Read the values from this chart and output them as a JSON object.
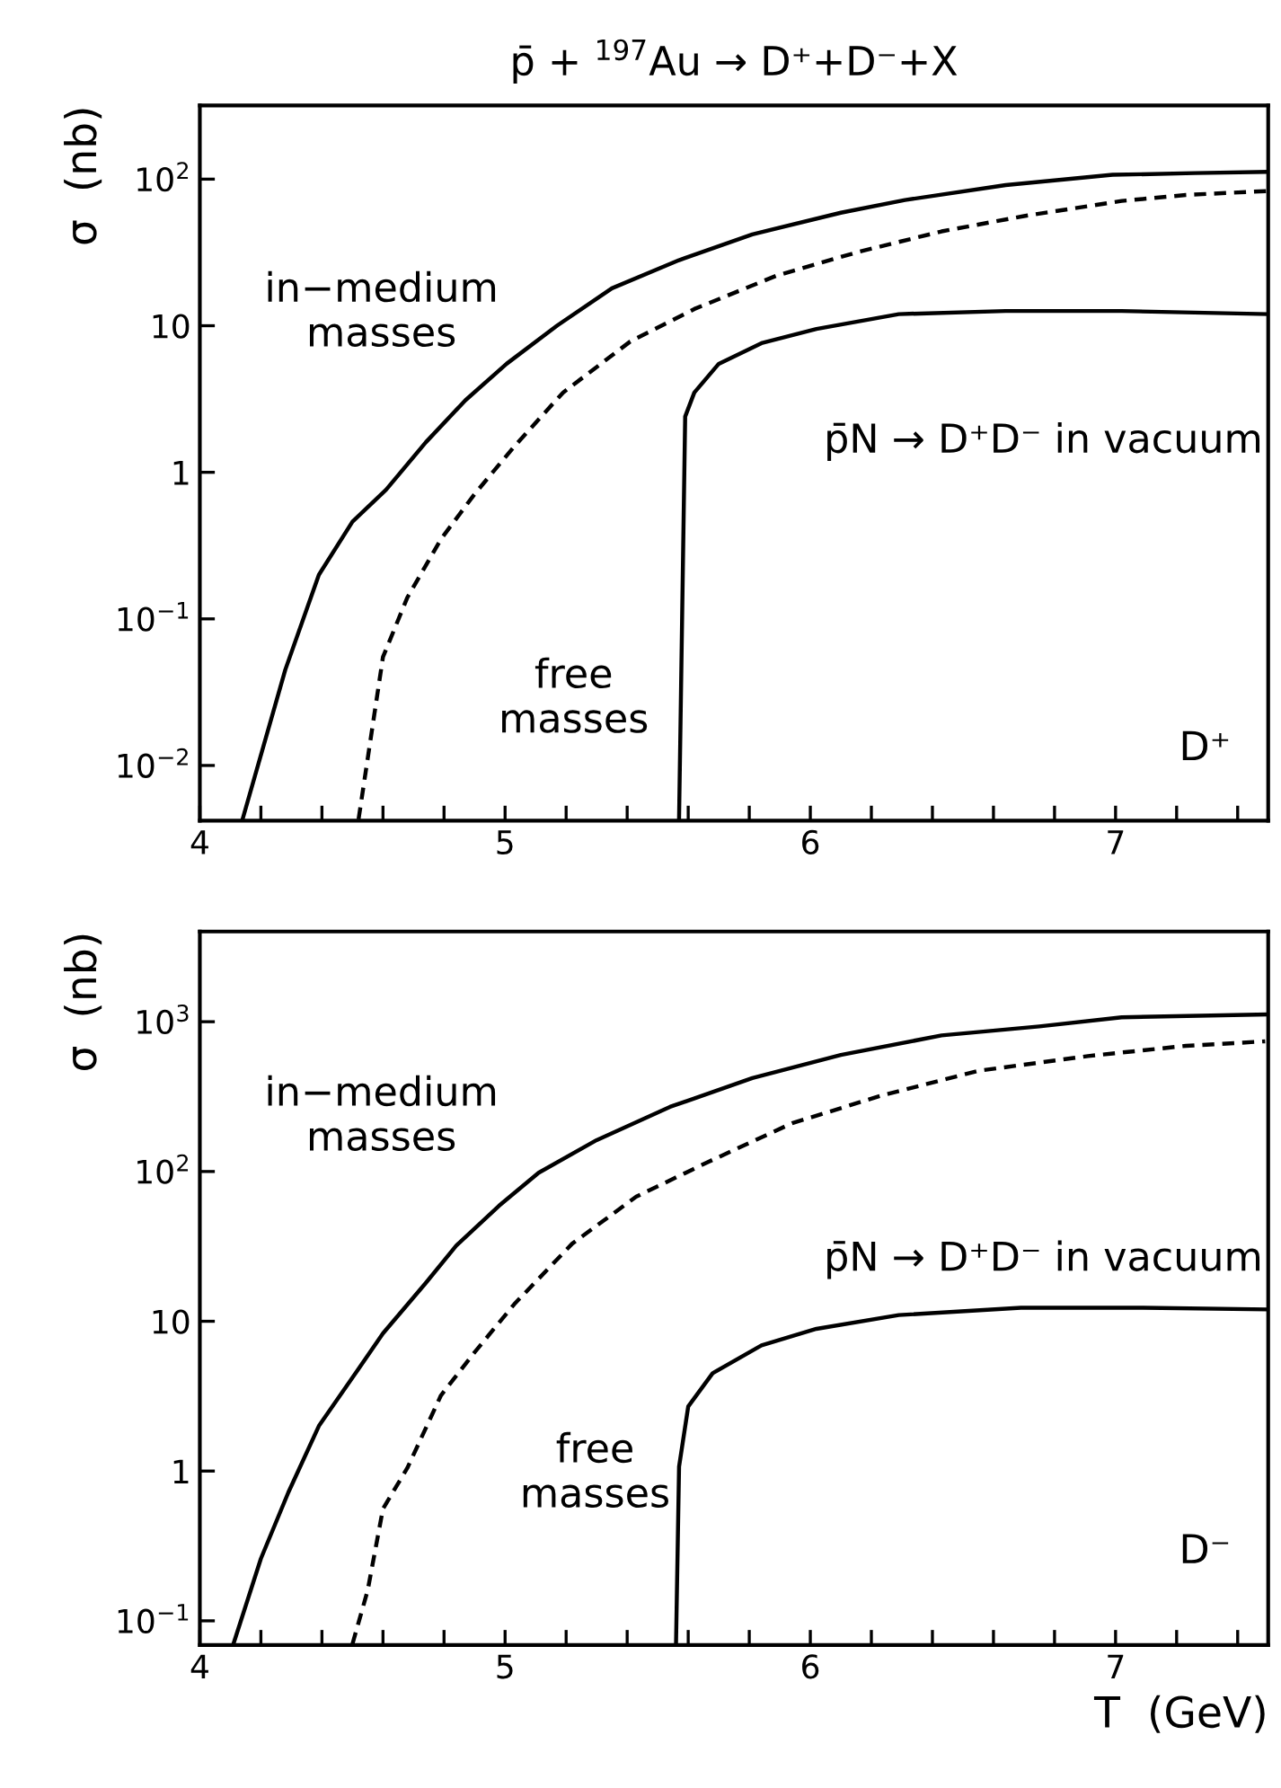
{
  "chart_data": [
    {
      "type": "line",
      "title": "p̄ + $^{197}$Au → D⁺+D⁻+X",
      "ylabel": "σ  (nb)",
      "log": "y",
      "grid": false,
      "xlim": [
        4,
        7.5
      ],
      "ylim": [
        0.0042,
        318
      ],
      "xticks": [
        4,
        {
          "value": 4.2,
          "label": null
        },
        {
          "value": 4.4,
          "label": null
        },
        {
          "value": 4.6,
          "label": null
        },
        {
          "value": 4.8,
          "label": null
        },
        5,
        {
          "value": 5.2,
          "label": null
        },
        {
          "value": 5.4,
          "label": null
        },
        {
          "value": 5.6,
          "label": null
        },
        {
          "value": 5.8,
          "label": null
        },
        6,
        {
          "value": 6.2,
          "label": null
        },
        {
          "value": 6.4,
          "label": null
        },
        {
          "value": 6.6,
          "label": null
        },
        {
          "value": 6.8,
          "label": null
        },
        7,
        {
          "value": 7.2,
          "label": null
        },
        {
          "value": 7.4,
          "label": null
        }
      ],
      "yticks": [
        {
          "value": 0.01,
          "label": "10$^{−2}$"
        },
        {
          "value": 0.1,
          "label": "10$^{−1}$"
        },
        1,
        10,
        {
          "value": 100,
          "label": "10$^{2}$"
        }
      ],
      "series": [
        {
          "color": "#000000",
          "line_style": "solid",
          "x": [
            4.14,
            4.28,
            4.39,
            4.5,
            4.61,
            4.74,
            4.87,
            5.005,
            5.17,
            5.35,
            5.57,
            5.81,
            6.1,
            6.31,
            6.64,
            6.99,
            7.26,
            7.5
          ],
          "values": [
            0.0043,
            0.045,
            0.2,
            0.46,
            0.76,
            1.6,
            3.1,
            5.5,
            10,
            18,
            28,
            42,
            59,
            72,
            91,
            107,
            110,
            112
          ]
        },
        {
          "color": "#000000",
          "line_style": "dashed",
          "x": [
            4.52,
            4.6,
            4.68,
            4.79,
            4.9,
            5.03,
            5.19,
            5.41,
            5.62,
            5.89,
            6.16,
            6.43,
            6.7,
            7.02,
            7.23,
            7.5
          ],
          "values": [
            0.0043,
            0.055,
            0.14,
            0.35,
            0.71,
            1.5,
            3.5,
            7.8,
            13,
            22,
            32,
            44,
            56,
            71,
            78,
            83
          ]
        },
        {
          "color": "#000000",
          "line_style": "solid",
          "x": [
            5.57,
            5.59,
            5.62,
            5.7,
            5.84,
            6.02,
            6.29,
            6.64,
            7.02,
            7.5
          ],
          "values": [
            0.0043,
            2.4,
            3.5,
            5.5,
            7.6,
            9.5,
            12,
            12.6,
            12.6,
            12
          ]
        }
      ],
      "annotations": [
        "in−medium\nmasses",
        "free\nmasses",
        "p̄N → D⁺D⁻ in vacuum",
        "D⁺"
      ]
    },
    {
      "type": "line",
      "xlabel": "T  (GeV)",
      "ylabel": "σ  (nb)",
      "log": "y",
      "grid": false,
      "xlim": [
        4,
        7.5
      ],
      "ylim": [
        0.069,
        4000
      ],
      "xticks": [
        4,
        {
          "value": 4.2,
          "label": null
        },
        {
          "value": 4.4,
          "label": null
        },
        {
          "value": 4.6,
          "label": null
        },
        {
          "value": 4.8,
          "label": null
        },
        5,
        {
          "value": 5.2,
          "label": null
        },
        {
          "value": 5.4,
          "label": null
        },
        {
          "value": 5.6,
          "label": null
        },
        {
          "value": 5.8,
          "label": null
        },
        6,
        {
          "value": 6.2,
          "label": null
        },
        {
          "value": 6.4,
          "label": null
        },
        {
          "value": 6.6,
          "label": null
        },
        {
          "value": 6.8,
          "label": null
        },
        7,
        {
          "value": 7.2,
          "label": null
        },
        {
          "value": 7.4,
          "label": null
        }
      ],
      "yticks": [
        {
          "value": 0.1,
          "label": "10$^{−1}$"
        },
        1,
        10,
        {
          "value": 100,
          "label": "10$^{2}$"
        },
        {
          "value": 1000,
          "label": "10$^{3}$"
        }
      ],
      "series": [
        {
          "color": "#000000",
          "line_style": "solid",
          "x": [
            4.11,
            4.2,
            4.29,
            4.39,
            4.5,
            4.6,
            4.74,
            4.84,
            4.98,
            5.11,
            5.3,
            5.54,
            5.81,
            6.1,
            6.43,
            6.75,
            7.02,
            7.5
          ],
          "values": [
            0.07,
            0.26,
            0.72,
            2,
            4.2,
            8.3,
            18,
            32,
            59,
            98,
            162,
            270,
            420,
            600,
            810,
            930,
            1070,
            1120
          ]
        },
        {
          "color": "#000000",
          "line_style": "dashed",
          "x": [
            4.5,
            4.55,
            4.6,
            4.68,
            4.79,
            4.9,
            5.03,
            5.22,
            5.43,
            5.67,
            5.94,
            6.23,
            6.55,
            6.91,
            7.23,
            7.49
          ],
          "values": [
            0.07,
            0.16,
            0.56,
            1.05,
            3.2,
            6.2,
            13,
            33,
            68,
            117,
            210,
            320,
            470,
            590,
            690,
            740
          ]
        },
        {
          "color": "#000000",
          "line_style": "solid",
          "x": [
            5.56,
            5.57,
            5.6,
            5.68,
            5.84,
            6.02,
            6.29,
            6.69,
            7.09,
            7.5
          ],
          "values": [
            0.07,
            1.07,
            2.7,
            4.5,
            6.9,
            8.9,
            11,
            12.3,
            12.3,
            12
          ]
        }
      ],
      "annotations": [
        "in−medium\nmasses",
        "free\nmasses",
        "p̄N → D⁺D⁻ in vacuum",
        "D⁻"
      ]
    }
  ]
}
